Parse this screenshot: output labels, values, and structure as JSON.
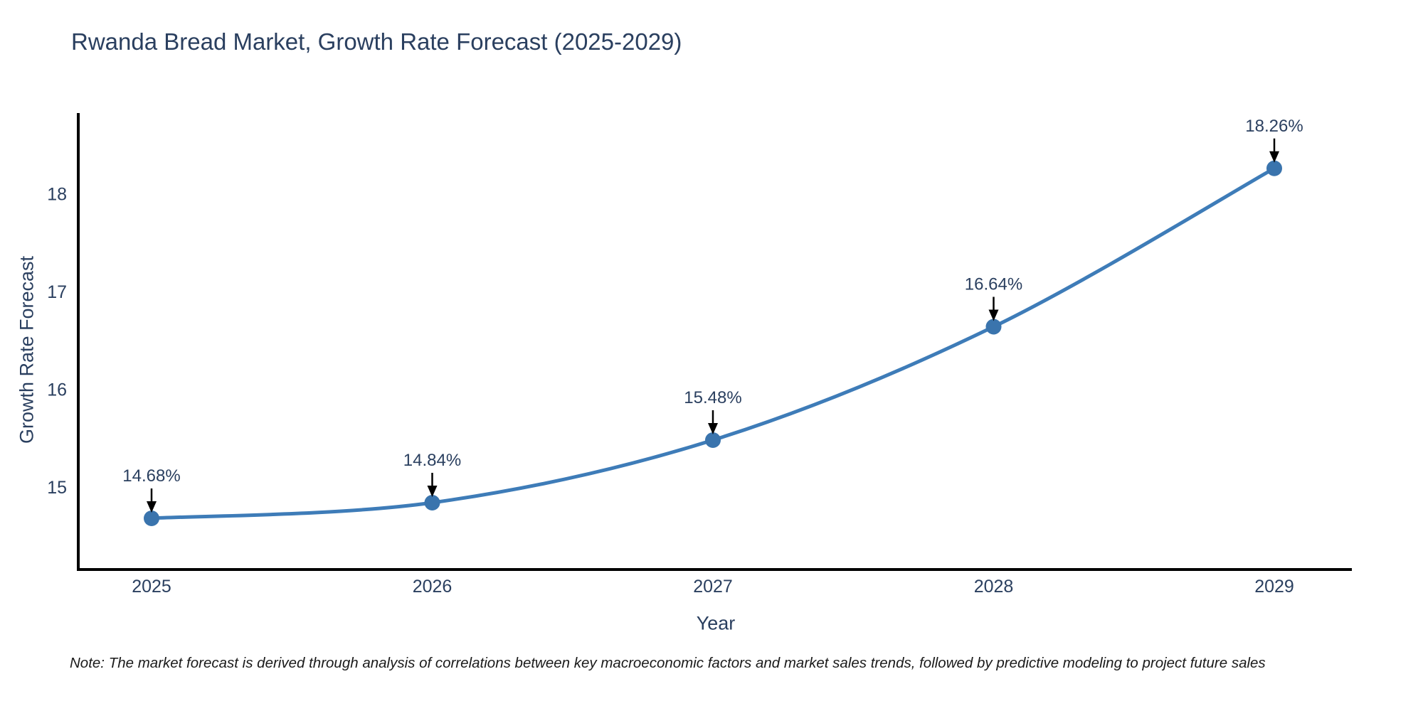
{
  "chart_data": {
    "type": "line",
    "title": "Rwanda Bread Market, Growth Rate Forecast (2025-2029)",
    "xlabel": "Year",
    "ylabel": "Growth Rate Forecast",
    "x": [
      2025,
      2026,
      2027,
      2028,
      2029
    ],
    "series": [
      {
        "name": "Growth Rate Forecast",
        "values": [
          14.68,
          14.84,
          15.48,
          16.64,
          18.26
        ]
      }
    ],
    "point_labels": [
      "14.68%",
      "14.84%",
      "15.48%",
      "16.64%",
      "18.26%"
    ],
    "y_ticks": [
      15,
      16,
      17,
      18
    ],
    "x_ticks": [
      "2025",
      "2026",
      "2027",
      "2028",
      "2029"
    ],
    "xlim": [
      2024.74,
      2029.29
    ],
    "ylim": [
      14.09,
      18.82
    ],
    "grid": false,
    "legend": "none",
    "line_shape": "spline",
    "marker": "circle",
    "colors": {
      "line": "#3e7cb8",
      "marker": "#3a74ad",
      "axis": "#000000",
      "text": "#2a3f5f",
      "arrow": "#000000",
      "background": "#ffffff"
    },
    "note": "Note: The market forecast is derived through analysis of correlations between key macroeconomic factors and market sales trends, followed by predictive modeling to project future sales"
  }
}
